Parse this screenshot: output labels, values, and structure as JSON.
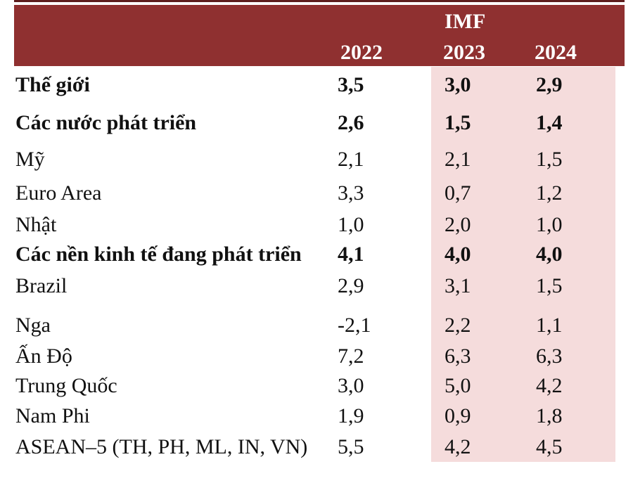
{
  "header": {
    "source": "IMF",
    "years": [
      "2022",
      "2023",
      "2024"
    ]
  },
  "colors": {
    "header_bg": "#8f3030",
    "forecast_shade": "#f5dcdc"
  },
  "rows": [
    {
      "label": "Thế giới",
      "v2022": "3,5",
      "v2023": "3,0",
      "v2024": "2,9",
      "bold": true
    },
    {
      "label": "Các nước phát triển",
      "v2022": "2,6",
      "v2023": "1,5",
      "v2024": "1,4",
      "bold": true
    },
    {
      "label": "Mỹ",
      "v2022": "2,1",
      "v2023": "2,1",
      "v2024": "1,5",
      "bold": false
    },
    {
      "label": "Euro Area",
      "v2022": "3,3",
      "v2023": "0,7",
      "v2024": "1,2",
      "bold": false
    },
    {
      "label": "Nhật",
      "v2022": "1,0",
      "v2023": "2,0",
      "v2024": "1,0",
      "bold": false
    },
    {
      "label": "Các nền kinh tế đang phát triển",
      "v2022": "4,1",
      "v2023": "4,0",
      "v2024": "4,0",
      "bold": true
    },
    {
      "label": "Brazil",
      "v2022": "2,9",
      "v2023": "3,1",
      "v2024": "1,5",
      "bold": false
    },
    {
      "label": "Nga",
      "v2022": "-2,1",
      "v2023": "2,2",
      "v2024": "1,1",
      "bold": false
    },
    {
      "label": "Ấn Độ",
      "v2022": "7,2",
      "v2023": "6,3",
      "v2024": "6,3",
      "bold": false
    },
    {
      "label": "Trung Quốc",
      "v2022": "3,0",
      "v2023": "5,0",
      "v2024": "4,2",
      "bold": false
    },
    {
      "label": "Nam Phi",
      "v2022": "1,9",
      "v2023": "0,9",
      "v2024": "1,8",
      "bold": false
    },
    {
      "label": "ASEAN–5 (TH, PH, ML, IN, VN)",
      "v2022": "5,5",
      "v2023": "4,2",
      "v2024": "4,5",
      "bold": false
    }
  ]
}
